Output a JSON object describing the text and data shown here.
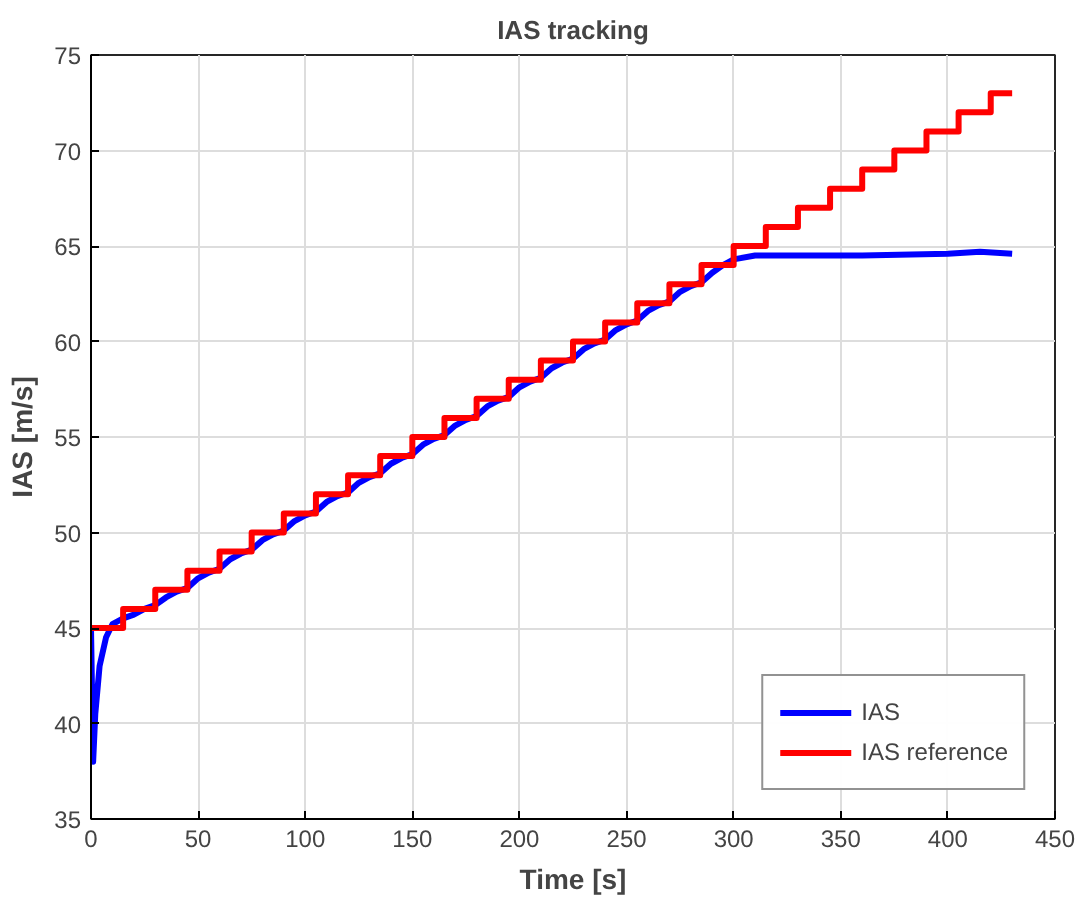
{
  "chart_data": {
    "type": "line",
    "title": "IAS tracking",
    "xlabel": "Time [s]",
    "ylabel": "IAS [m/s]",
    "xlim": [
      0,
      450
    ],
    "ylim": [
      35,
      75
    ],
    "xticks": [
      0,
      50,
      100,
      150,
      200,
      250,
      300,
      350,
      400,
      450
    ],
    "yticks": [
      35,
      40,
      45,
      50,
      55,
      60,
      65,
      70,
      75
    ],
    "grid": true,
    "legend": "bottom right",
    "line_style": "solid",
    "marker": "none",
    "series": [
      {
        "name": "IAS",
        "color": "#0000ff",
        "x": [
          0,
          1,
          2,
          4,
          7,
          10,
          15,
          20,
          25,
          30,
          35,
          40,
          45,
          50,
          55,
          60,
          65,
          70,
          75,
          80,
          85,
          90,
          95,
          100,
          105,
          110,
          115,
          120,
          125,
          130,
          135,
          140,
          145,
          150,
          155,
          160,
          165,
          170,
          175,
          180,
          185,
          190,
          195,
          200,
          205,
          210,
          215,
          220,
          225,
          230,
          235,
          240,
          245,
          250,
          255,
          260,
          265,
          270,
          275,
          280,
          285,
          290,
          295,
          300,
          310,
          330,
          360,
          400,
          415,
          430
        ],
        "values": [
          45,
          38,
          40.5,
          43,
          44.5,
          45.2,
          45.5,
          45.7,
          46,
          46.2,
          46.6,
          46.9,
          47.1,
          47.6,
          47.9,
          48.1,
          48.6,
          48.9,
          49.1,
          49.6,
          49.9,
          50.1,
          50.6,
          50.9,
          51.1,
          51.6,
          51.9,
          52.1,
          52.6,
          52.9,
          53.1,
          53.6,
          53.9,
          54.1,
          54.6,
          54.9,
          55.1,
          55.6,
          55.9,
          56.1,
          56.6,
          56.9,
          57.1,
          57.6,
          57.9,
          58.1,
          58.6,
          58.9,
          59.1,
          59.6,
          59.9,
          60.1,
          60.6,
          60.9,
          61.1,
          61.6,
          61.9,
          62.1,
          62.6,
          62.9,
          63.1,
          63.6,
          64,
          64.3,
          64.5,
          64.5,
          64.5,
          64.6,
          64.7,
          64.6
        ]
      },
      {
        "name": "IAS reference",
        "color": "#ff0000",
        "type": "step",
        "x": [
          0,
          15,
          30,
          45,
          60,
          75,
          90,
          105,
          120,
          135,
          150,
          165,
          180,
          195,
          210,
          225,
          240,
          255,
          270,
          285,
          300,
          315,
          330,
          345,
          360,
          375,
          390,
          405,
          420,
          430
        ],
        "values": [
          45,
          46,
          47,
          48,
          49,
          50,
          51,
          52,
          53,
          54,
          55,
          56,
          57,
          58,
          59,
          60,
          61,
          62,
          63,
          64,
          65,
          66,
          67,
          68,
          69,
          70,
          71,
          72,
          73,
          73
        ]
      }
    ]
  }
}
